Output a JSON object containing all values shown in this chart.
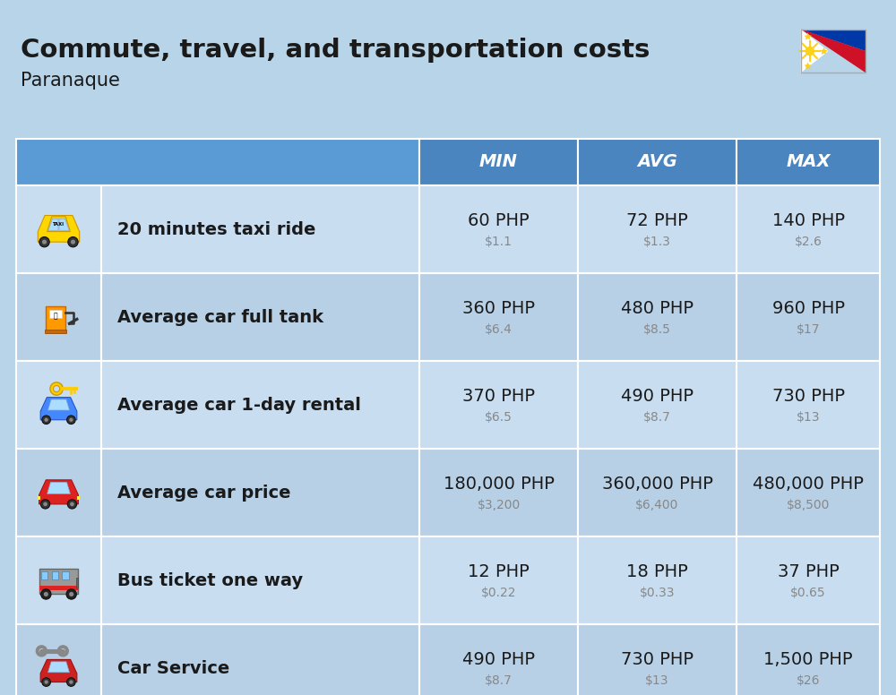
{
  "title": "Commute, travel, and transportation costs",
  "subtitle": "Paranaque",
  "background_color": "#b8d4e8",
  "header_bg_color": "#5b9bd5",
  "col_header_bg": "#4a85c0",
  "row_bg_light": "#c8ddf0",
  "row_bg_dark": "#b8d0e6",
  "white": "#ffffff",
  "dark_text": "#1a1a1a",
  "gray_text": "#888888",
  "categories": [
    "20 minutes taxi ride",
    "Average car full tank",
    "Average car 1-day rental",
    "Average car price",
    "Bus ticket one way",
    "Car Service"
  ],
  "min_php": [
    "60 PHP",
    "360 PHP",
    "370 PHP",
    "180,000 PHP",
    "12 PHP",
    "490 PHP"
  ],
  "min_usd": [
    "$1.1",
    "$6.4",
    "$6.5",
    "$3,200",
    "$0.22",
    "$8.7"
  ],
  "avg_php": [
    "72 PHP",
    "480 PHP",
    "490 PHP",
    "360,000 PHP",
    "18 PHP",
    "730 PHP"
  ],
  "avg_usd": [
    "$1.3",
    "$8.5",
    "$8.7",
    "$6,400",
    "$0.33",
    "$13"
  ],
  "max_php": [
    "140 PHP",
    "960 PHP",
    "730 PHP",
    "480,000 PHP",
    "37 PHP",
    "1,500 PHP"
  ],
  "max_usd": [
    "$2.6",
    "$17",
    "$13",
    "$8,500",
    "$0.65",
    "$26"
  ],
  "title_fontsize": 21,
  "subtitle_fontsize": 15,
  "header_fontsize": 14,
  "php_fontsize": 14,
  "usd_fontsize": 10,
  "cat_fontsize": 14
}
